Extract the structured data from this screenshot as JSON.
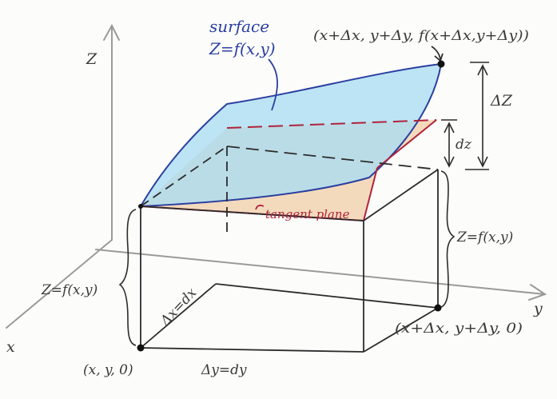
{
  "diagram": {
    "axis_labels": {
      "z": "Z",
      "x": "x",
      "y": "y"
    },
    "surface_label": {
      "line1": "surface",
      "line2": "Z=f(x,y)"
    },
    "tangent_plane_label": "tangent plane",
    "point_labels": {
      "top": "(x+Δx, y+Δy, f(x+Δx,y+Δy))",
      "base_near": "(x, y, 0)",
      "base_far": "(x+Δx, y+Δy, 0)"
    },
    "measure_labels": {
      "delta_z": "ΔZ",
      "dz": "dz",
      "height_left": "Z=f(x,y)",
      "height_right": "Z=f(x,y)",
      "dx": "Δx=dx",
      "dy": "Δy=dy"
    },
    "colors": {
      "surface_fill": "#a9dcf2",
      "surface_stroke": "#2a3fa0",
      "tangent_fill": "#f1cfa8",
      "tangent_stroke": "#b0233a",
      "ink": "#2b2b2b",
      "axis": "#9a9a9a"
    }
  }
}
